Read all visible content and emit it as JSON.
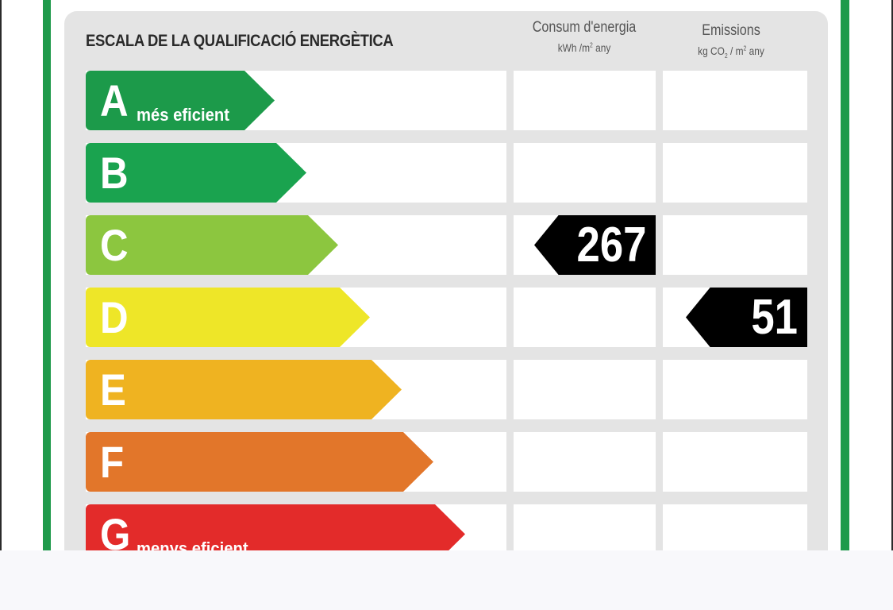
{
  "title": "ESCALA DE LA QUALIFICACIÓ ENERGÈTICA",
  "columns": {
    "consumption": {
      "label": "Consum d'energia",
      "unit_prefix": "kWh /m",
      "unit_exp": "2",
      "unit_suffix": " any"
    },
    "emissions": {
      "label": "Emissions",
      "unit_prefix": "kg CO",
      "unit_sub": "2",
      "unit_mid": " / m",
      "unit_exp": "2",
      "unit_suffix": " any"
    }
  },
  "ratings": [
    {
      "letter": "A",
      "sublabel": "més eficient",
      "color": "#1c9a4a"
    },
    {
      "letter": "B",
      "sublabel": "",
      "color": "#1aa34f"
    },
    {
      "letter": "C",
      "sublabel": "",
      "color": "#8cc63f"
    },
    {
      "letter": "D",
      "sublabel": "",
      "color": "#eee628"
    },
    {
      "letter": "E",
      "sublabel": "",
      "color": "#efb321"
    },
    {
      "letter": "F",
      "sublabel": "",
      "color": "#e2762a"
    },
    {
      "letter": "G",
      "sublabel": "menys eficient",
      "color": "#e32b2a"
    }
  ],
  "results": {
    "consumption": {
      "value": "267",
      "rating": "C"
    },
    "emissions": {
      "value": "51",
      "rating": "D"
    }
  }
}
